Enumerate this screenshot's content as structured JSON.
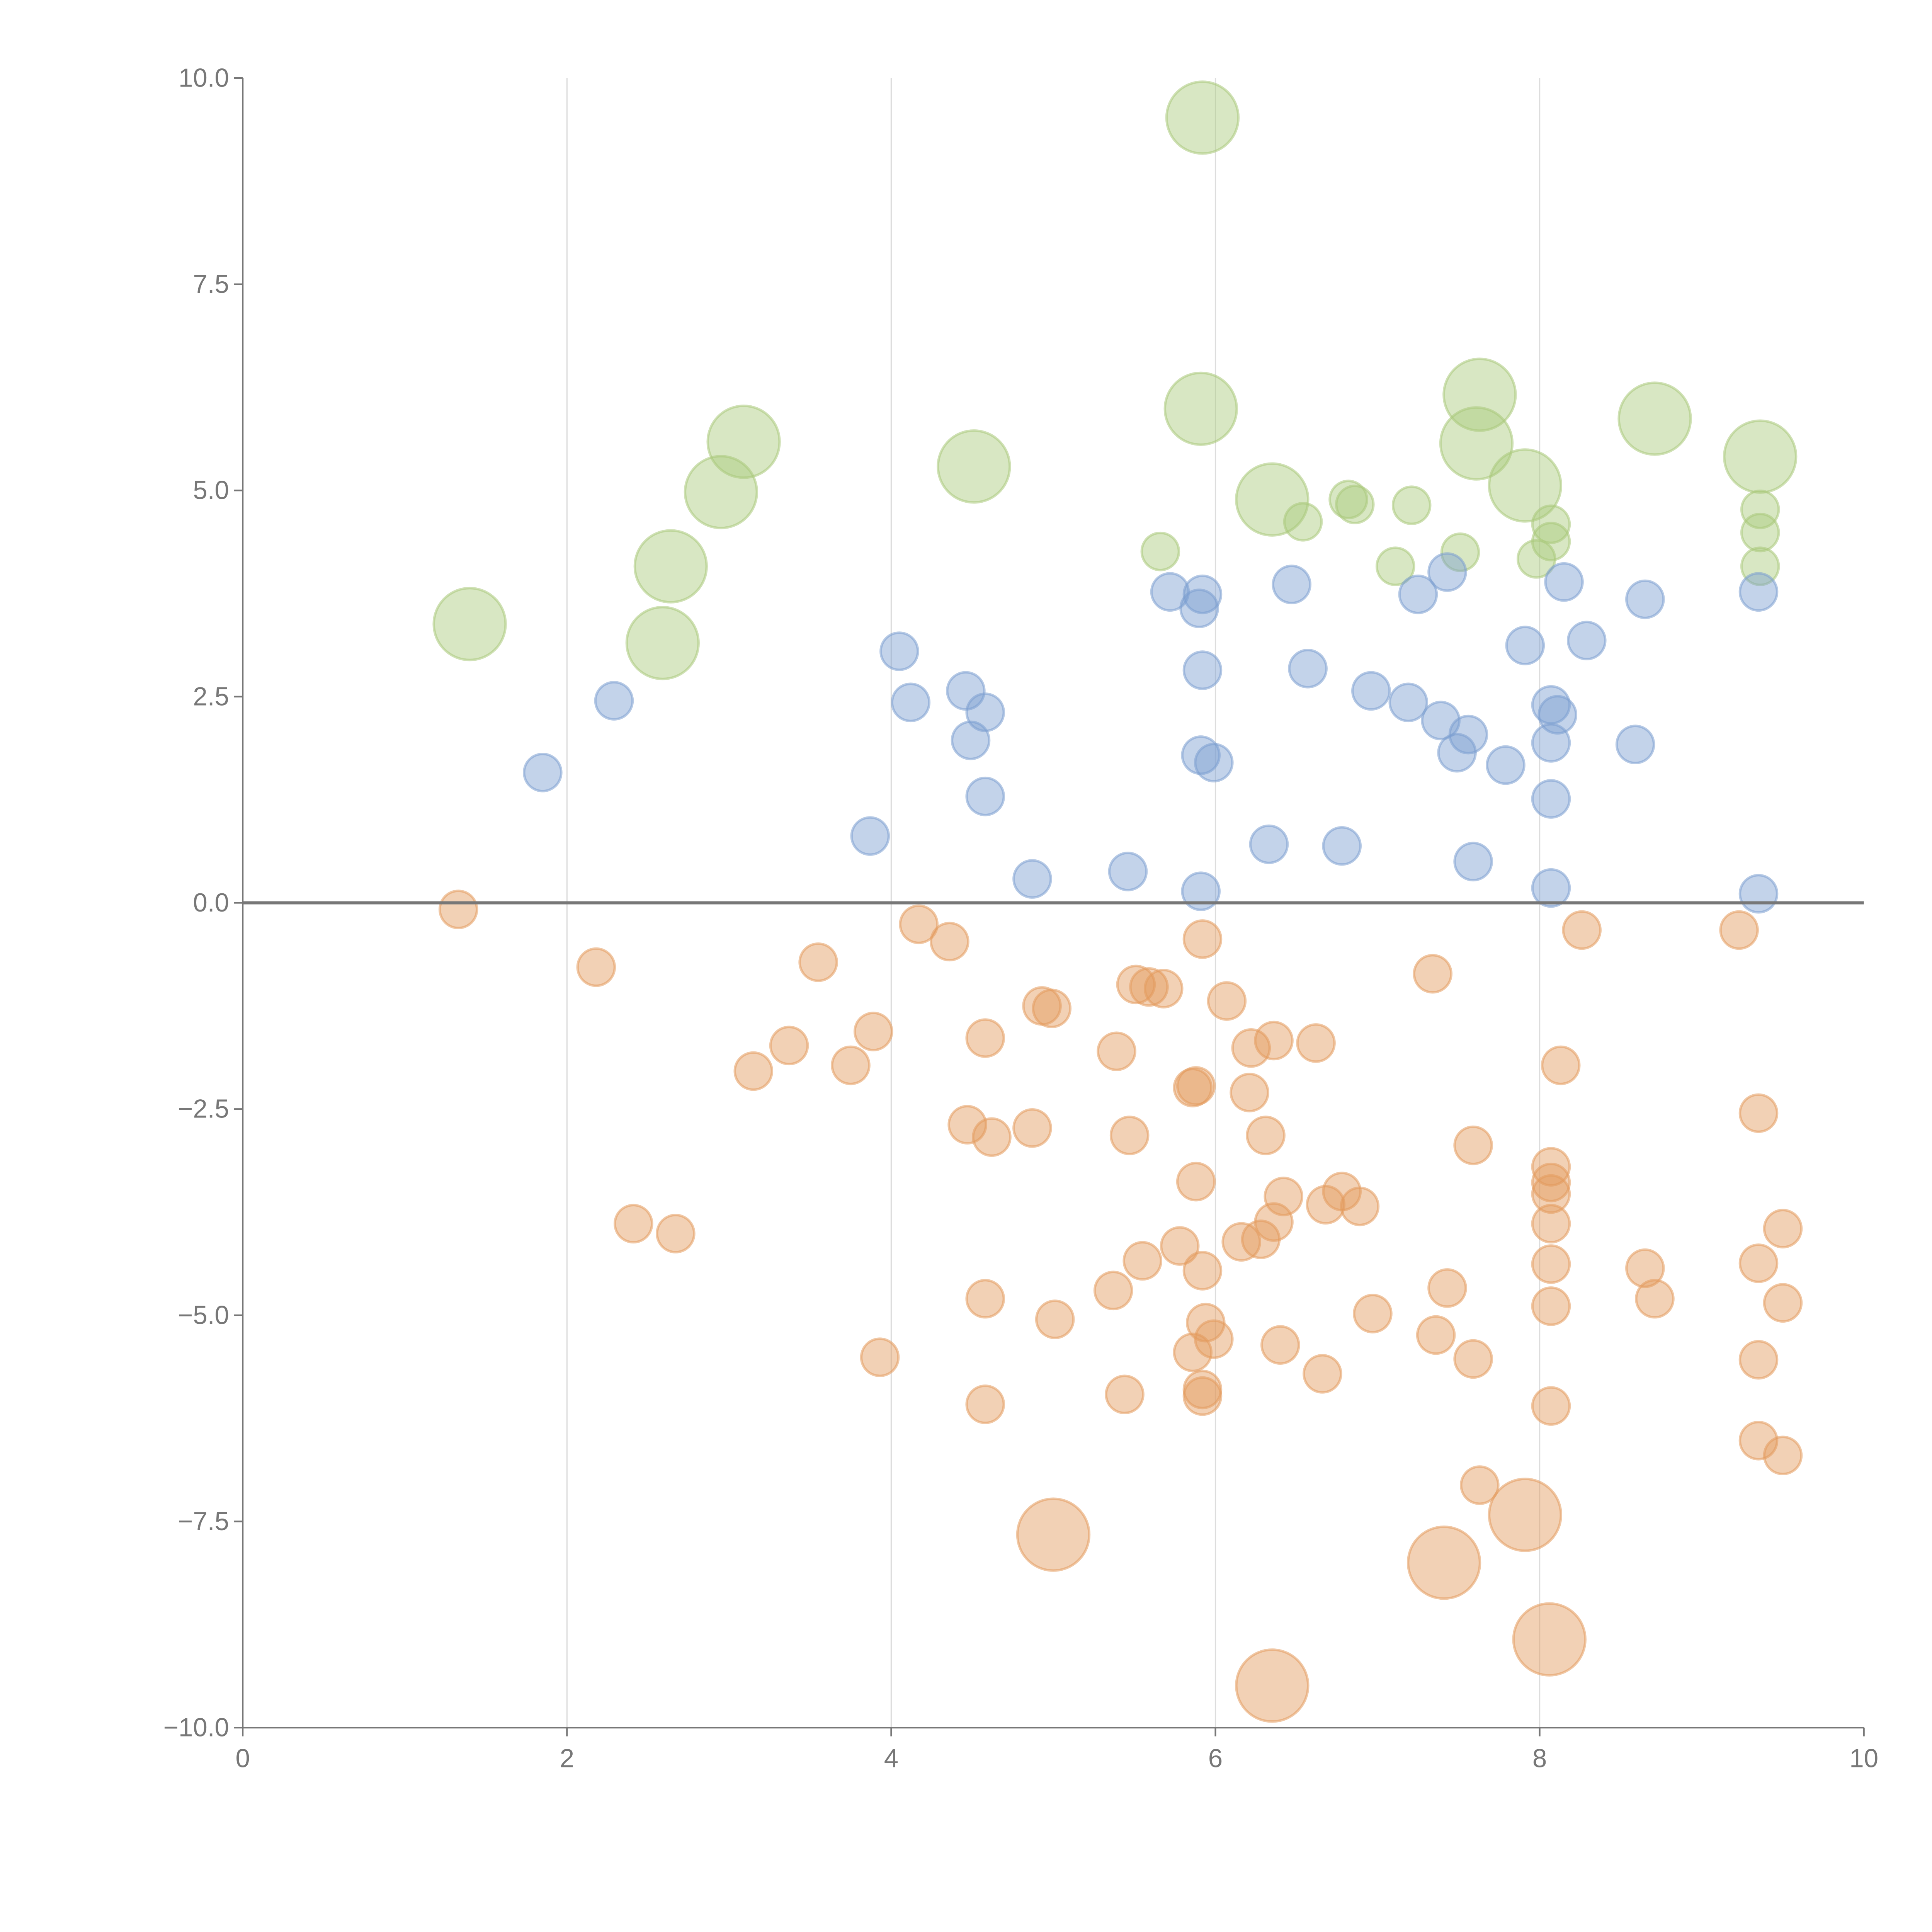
{
  "chart_data": {
    "type": "scatter",
    "title": "",
    "xlabel": "",
    "ylabel": "",
    "xlim": [
      0,
      10
    ],
    "ylim": [
      -10,
      10
    ],
    "grid": "vertical",
    "x_ticks": [
      "0",
      "2",
      "4",
      "6",
      "8",
      "10"
    ],
    "x_tick_values": [
      0,
      2,
      4,
      6,
      8,
      10
    ],
    "y_ticks": [
      "10.0",
      "7.5",
      "5.0",
      "2.5",
      "0.0",
      "−2.5",
      "−5.0",
      "−7.5",
      "−10.0"
    ],
    "y_tick_values": [
      10,
      7.5,
      5,
      2.5,
      0,
      -2.5,
      -5,
      -7.5,
      -10
    ],
    "point_format": "[x, y, size]",
    "series": [
      {
        "name": "green",
        "color": "#a9c97a",
        "points": [
          [
            5.92,
            9.52,
            2
          ],
          [
            5.91,
            5.99,
            2
          ],
          [
            3.09,
            5.59,
            2
          ],
          [
            2.95,
            4.98,
            2
          ],
          [
            4.51,
            5.29,
            2
          ],
          [
            2.64,
            4.08,
            2
          ],
          [
            2.59,
            3.15,
            2
          ],
          [
            1.4,
            3.38,
            2
          ],
          [
            6.35,
            4.89,
            2
          ],
          [
            7.63,
            6.16,
            2
          ],
          [
            7.61,
            5.57,
            2
          ],
          [
            7.91,
            5.06,
            2
          ],
          [
            8.71,
            5.87,
            2
          ],
          [
            9.36,
            5.41,
            2
          ],
          [
            5.66,
            4.26,
            1
          ],
          [
            6.54,
            4.62,
            1
          ],
          [
            6.82,
            4.89,
            1
          ],
          [
            6.86,
            4.83,
            1
          ],
          [
            7.21,
            4.82,
            1
          ],
          [
            7.11,
            4.08,
            1
          ],
          [
            7.51,
            4.25,
            1
          ],
          [
            7.98,
            4.17,
            1
          ],
          [
            8.07,
            4.59,
            1
          ],
          [
            8.07,
            4.38,
            1
          ],
          [
            9.36,
            4.77,
            1
          ],
          [
            9.36,
            4.49,
            1
          ],
          [
            9.36,
            4.08,
            1
          ]
        ]
      },
      {
        "name": "blue",
        "color": "#7b9ed0",
        "points": [
          [
            1.85,
            1.58,
            1
          ],
          [
            2.29,
            2.45,
            1
          ],
          [
            3.87,
            0.81,
            1
          ],
          [
            4.05,
            3.05,
            1
          ],
          [
            4.12,
            2.43,
            1
          ],
          [
            4.46,
            2.57,
            1
          ],
          [
            4.49,
            1.97,
            1
          ],
          [
            4.58,
            2.31,
            1
          ],
          [
            4.58,
            1.29,
            1
          ],
          [
            4.87,
            0.29,
            1
          ],
          [
            5.46,
            0.38,
            1
          ],
          [
            5.72,
            3.77,
            1
          ],
          [
            5.92,
            3.74,
            1
          ],
          [
            5.9,
            3.57,
            1
          ],
          [
            5.92,
            2.82,
            1
          ],
          [
            5.91,
            1.79,
            1
          ],
          [
            5.99,
            1.7,
            1
          ],
          [
            5.91,
            0.14,
            1
          ],
          [
            6.33,
            0.71,
            1
          ],
          [
            6.47,
            3.86,
            1
          ],
          [
            6.57,
            2.84,
            1
          ],
          [
            6.78,
            0.69,
            1
          ],
          [
            6.96,
            2.57,
            1
          ],
          [
            7.19,
            2.43,
            1
          ],
          [
            7.25,
            3.74,
            1
          ],
          [
            7.39,
            2.21,
            1
          ],
          [
            7.43,
            4.01,
            1
          ],
          [
            7.56,
            2.04,
            1
          ],
          [
            7.49,
            1.82,
            1
          ],
          [
            7.59,
            0.5,
            1
          ],
          [
            7.79,
            1.67,
            1
          ],
          [
            7.91,
            3.12,
            1
          ],
          [
            8.07,
            2.4,
            1
          ],
          [
            8.11,
            2.28,
            1
          ],
          [
            8.07,
            1.94,
            1
          ],
          [
            8.07,
            1.26,
            1
          ],
          [
            8.07,
            0.18,
            1
          ],
          [
            8.15,
            3.89,
            1
          ],
          [
            8.29,
            3.18,
            1
          ],
          [
            8.59,
            1.92,
            1
          ],
          [
            8.65,
            3.68,
            1
          ],
          [
            9.35,
            3.77,
            1
          ],
          [
            9.35,
            0.11,
            1
          ]
        ]
      },
      {
        "name": "orange",
        "color": "#e39a5c",
        "points": [
          [
            1.33,
            -0.08,
            1
          ],
          [
            2.18,
            -0.78,
            1
          ],
          [
            2.41,
            -3.89,
            1
          ],
          [
            2.67,
            -4.01,
            1
          ],
          [
            3.15,
            -2.04,
            1
          ],
          [
            3.37,
            -1.73,
            1
          ],
          [
            3.55,
            -0.72,
            1
          ],
          [
            3.75,
            -1.97,
            1
          ],
          [
            3.89,
            -1.56,
            1
          ],
          [
            3.93,
            -5.51,
            1
          ],
          [
            4.17,
            -0.26,
            1
          ],
          [
            4.36,
            -0.47,
            1
          ],
          [
            4.47,
            -2.69,
            1
          ],
          [
            4.58,
            -1.64,
            1
          ],
          [
            4.62,
            -2.84,
            1
          ],
          [
            4.58,
            -4.8,
            1
          ],
          [
            4.58,
            -6.08,
            1
          ],
          [
            4.87,
            -2.73,
            1
          ],
          [
            4.93,
            -1.25,
            1
          ],
          [
            4.99,
            -1.28,
            1
          ],
          [
            5.01,
            -5.05,
            1
          ],
          [
            5.39,
            -1.8,
            1
          ],
          [
            5.37,
            -4.7,
            1
          ],
          [
            5.44,
            -5.96,
            1
          ],
          [
            5.47,
            -2.82,
            1
          ],
          [
            5.51,
            -0.99,
            1
          ],
          [
            5.55,
            -4.34,
            1
          ],
          [
            5.59,
            -1.02,
            1
          ],
          [
            5.68,
            -1.04,
            1
          ],
          [
            5.78,
            -4.16,
            1
          ],
          [
            5.86,
            -2.24,
            1
          ],
          [
            5.88,
            -2.22,
            1
          ],
          [
            5.88,
            -3.38,
            1
          ],
          [
            5.86,
            -5.45,
            1
          ],
          [
            5.92,
            -0.44,
            1
          ],
          [
            5.92,
            -4.46,
            1
          ],
          [
            5.94,
            -5.09,
            1
          ],
          [
            5.99,
            -5.29,
            1
          ],
          [
            5.92,
            -5.9,
            1
          ],
          [
            5.92,
            -5.98,
            1
          ],
          [
            6.07,
            -1.19,
            1
          ],
          [
            6.22,
            -1.76,
            1
          ],
          [
            6.21,
            -2.3,
            1
          ],
          [
            6.16,
            -4.11,
            1
          ],
          [
            6.28,
            -4.08,
            1
          ],
          [
            6.31,
            -2.82,
            1
          ],
          [
            6.36,
            -3.87,
            1
          ],
          [
            6.36,
            -1.67,
            1
          ],
          [
            6.42,
            -3.56,
            1
          ],
          [
            6.4,
            -5.36,
            1
          ],
          [
            6.62,
            -1.7,
            1
          ],
          [
            6.66,
            -5.71,
            1
          ],
          [
            6.68,
            -3.66,
            1
          ],
          [
            6.78,
            -3.5,
            1
          ],
          [
            6.89,
            -3.68,
            1
          ],
          [
            6.97,
            -4.98,
            1
          ],
          [
            7.34,
            -0.86,
            1
          ],
          [
            7.36,
            -5.24,
            1
          ],
          [
            7.43,
            -4.67,
            1
          ],
          [
            7.59,
            -2.94,
            1
          ],
          [
            7.59,
            -5.53,
            1
          ],
          [
            7.63,
            -7.06,
            1
          ],
          [
            8.07,
            -3.2,
            1
          ],
          [
            8.07,
            -3.39,
            1
          ],
          [
            8.07,
            -3.53,
            1
          ],
          [
            8.07,
            -3.89,
            1
          ],
          [
            8.07,
            -4.38,
            1
          ],
          [
            8.07,
            -4.89,
            1
          ],
          [
            8.07,
            -6.1,
            1
          ],
          [
            8.13,
            -1.97,
            1
          ],
          [
            8.26,
            -0.33,
            1
          ],
          [
            8.65,
            -4.43,
            1
          ],
          [
            8.71,
            -4.8,
            1
          ],
          [
            9.23,
            -0.33,
            1
          ],
          [
            9.35,
            -2.55,
            1
          ],
          [
            9.35,
            -4.37,
            1
          ],
          [
            9.35,
            -5.54,
            1
          ],
          [
            9.35,
            -6.52,
            1
          ],
          [
            9.5,
            -3.95,
            1
          ],
          [
            9.5,
            -4.85,
            1
          ],
          [
            9.5,
            -6.7,
            1
          ],
          [
            5.0,
            -7.66,
            2
          ],
          [
            7.41,
            -8.0,
            2
          ],
          [
            7.91,
            -7.42,
            2
          ],
          [
            8.06,
            -8.93,
            2
          ],
          [
            6.35,
            -9.49,
            2
          ]
        ]
      }
    ]
  }
}
